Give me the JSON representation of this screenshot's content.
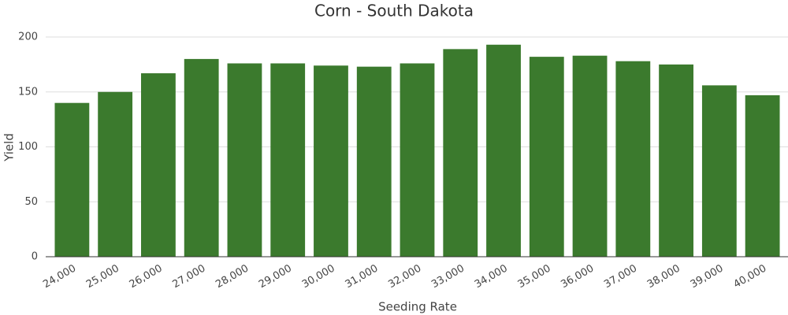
{
  "chart_data": {
    "type": "bar",
    "title": "Corn - South Dakota",
    "x_label": "Seeding Rate",
    "y_label": "Yield",
    "categories": [
      "24,000",
      "25,000",
      "26,000",
      "27,000",
      "28,000",
      "29,000",
      "30,000",
      "31,000",
      "32,000",
      "33,000",
      "34,000",
      "35,000",
      "36,000",
      "37,000",
      "38,000",
      "39,000",
      "40,000"
    ],
    "values": [
      140,
      150,
      167,
      180,
      176,
      176,
      174,
      173,
      176,
      189,
      193,
      182,
      183,
      178,
      175,
      156,
      147
    ],
    "color": "#3b7a2d",
    "ylim": [
      0,
      200
    ],
    "yticks": [
      0,
      50,
      100,
      150,
      200
    ],
    "grid": true
  }
}
